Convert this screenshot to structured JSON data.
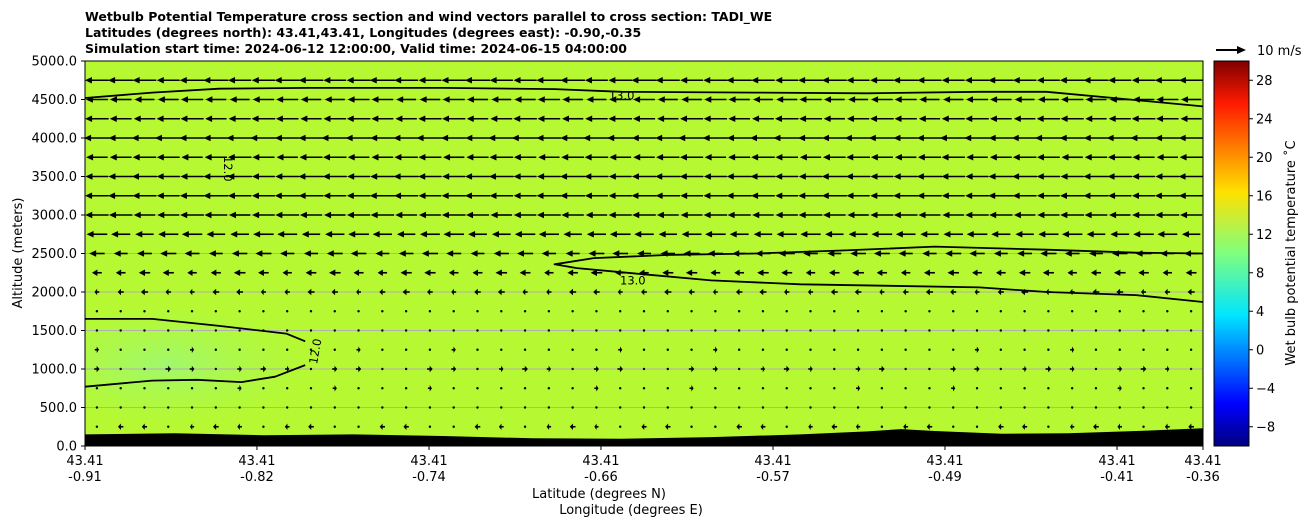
{
  "chart_data": {
    "type": "heatmap",
    "title_lines": [
      "Wetbulb Potential Temperature cross section and wind vectors parallel to cross section: TADI_WE",
      "Latitudes (degrees north): 43.41,43.41, Longitudes (degrees east): -0.90,-0.35",
      "Simulation start time: 2024-06-12 12:00:00, Valid time: 2024-06-15 04:00:00"
    ],
    "ylabel": "Altitude (meters)",
    "xlabel_lat": "Latitude (degrees N)",
    "xlabel_lon": "Longitude (degrees E)",
    "ylim": [
      0,
      5000
    ],
    "yticks": [
      0,
      500,
      1000,
      1500,
      2000,
      2500,
      3000,
      3500,
      4000,
      4500,
      5000
    ],
    "ytick_labels": [
      "0.0",
      "500.0",
      "1000.0",
      "1500.0",
      "2000.0",
      "2500.0",
      "3000.0",
      "3500.0",
      "4000.0",
      "4500.0",
      "5000.0"
    ],
    "xticks": [
      {
        "lat": "43.41",
        "lon": "-0.91"
      },
      {
        "lat": "43.41",
        "lon": "-0.82"
      },
      {
        "lat": "43.41",
        "lon": "-0.74"
      },
      {
        "lat": "43.41",
        "lon": "-0.66"
      },
      {
        "lat": "43.41",
        "lon": "-0.57"
      },
      {
        "lat": "43.41",
        "lon": "-0.49"
      },
      {
        "lat": "43.41",
        "lon": "-0.41"
      },
      {
        "lat": "43.41",
        "lon": "-0.36"
      }
    ],
    "xtick_fractions": [
      0,
      0.1538,
      0.3077,
      0.4615,
      0.6154,
      0.7692,
      0.9231,
      1.0
    ],
    "colorbar": {
      "label": "Wet bulb potential temperature ˚C",
      "range": [
        -10,
        30
      ],
      "ticks": [
        -8,
        -4,
        0,
        4,
        8,
        12,
        16,
        20,
        24,
        28
      ],
      "tick_labels": [
        "−8",
        "−4",
        "0",
        "4",
        "8",
        "12",
        "16",
        "20",
        "24",
        "28"
      ]
    },
    "wind_key": {
      "label": "10 m/s",
      "speed": 10
    },
    "contour_labels": [
      {
        "text": "13.0",
        "xf": 0.48,
        "alt": 4550
      },
      {
        "text": "13.0",
        "xf": 0.49,
        "alt": 2150
      },
      {
        "text": "12.0",
        "xf": 0.128,
        "alt": 3600
      },
      {
        "text": "12.0",
        "xf": 0.206,
        "alt": 1230
      }
    ],
    "contours": [
      {
        "level": 13.0,
        "points": [
          [
            0,
            4520
          ],
          [
            0.06,
            4590
          ],
          [
            0.12,
            4640
          ],
          [
            0.2,
            4650
          ],
          [
            0.32,
            4650
          ],
          [
            0.42,
            4635
          ],
          [
            0.48,
            4600
          ],
          [
            0.6,
            4590
          ],
          [
            0.7,
            4580
          ],
          [
            0.8,
            4600
          ],
          [
            0.86,
            4600
          ],
          [
            0.92,
            4520
          ],
          [
            1.0,
            4410
          ]
        ]
      },
      {
        "level": 13.0,
        "points": [
          [
            1.0,
            2500
          ],
          [
            0.94,
            2510
          ],
          [
            0.86,
            2550
          ],
          [
            0.76,
            2590
          ],
          [
            0.68,
            2540
          ],
          [
            0.6,
            2500
          ],
          [
            0.52,
            2480
          ],
          [
            0.455,
            2440
          ],
          [
            0.42,
            2360
          ],
          [
            0.44,
            2310
          ],
          [
            0.5,
            2230
          ],
          [
            0.56,
            2150
          ],
          [
            0.64,
            2100
          ],
          [
            0.72,
            2080
          ],
          [
            0.8,
            2060
          ],
          [
            0.86,
            2000
          ],
          [
            0.94,
            1960
          ],
          [
            1.0,
            1870
          ]
        ]
      },
      {
        "level": 12.0,
        "points": [
          [
            0,
            1650
          ],
          [
            0.06,
            1650
          ],
          [
            0.12,
            1560
          ],
          [
            0.18,
            1460
          ],
          [
            0.197,
            1360
          ]
        ]
      },
      {
        "level": 12.0,
        "points": [
          [
            0.197,
            1050
          ],
          [
            0.17,
            900
          ],
          [
            0.14,
            830
          ],
          [
            0.1,
            860
          ],
          [
            0.06,
            850
          ],
          [
            0,
            770
          ]
        ]
      }
    ],
    "terrain_alt": [
      [
        0,
        150
      ],
      [
        0.08,
        165
      ],
      [
        0.16,
        140
      ],
      [
        0.24,
        150
      ],
      [
        0.32,
        130
      ],
      [
        0.4,
        100
      ],
      [
        0.48,
        95
      ],
      [
        0.56,
        115
      ],
      [
        0.64,
        150
      ],
      [
        0.7,
        190
      ],
      [
        0.73,
        220
      ],
      [
        0.76,
        195
      ],
      [
        0.82,
        160
      ],
      [
        0.88,
        165
      ],
      [
        0.95,
        200
      ],
      [
        1.0,
        230
      ]
    ],
    "wind_levels": [
      {
        "alt": 4750,
        "u": -8.0
      },
      {
        "alt": 4500,
        "u": -7.0
      },
      {
        "alt": 4250,
        "u": -7.5
      },
      {
        "alt": 4000,
        "u": -8.5
      },
      {
        "alt": 3750,
        "u": -7.5
      },
      {
        "alt": 3500,
        "u": -8.0
      },
      {
        "alt": 3250,
        "u": -8.0
      },
      {
        "alt": 3000,
        "u": -7.5
      },
      {
        "alt": 2750,
        "u": -6.5
      },
      {
        "alt": 2500,
        "u": -5.0
      },
      {
        "alt": 2250,
        "u": -3.5
      },
      {
        "alt": 2000,
        "u": -2.0
      },
      {
        "alt": 1750,
        "u": -0.5
      },
      {
        "alt": 1500,
        "u": 0.3
      },
      {
        "alt": 1250,
        "u": 1.0
      },
      {
        "alt": 1000,
        "u": 1.5
      },
      {
        "alt": 750,
        "u": 1.0
      },
      {
        "alt": 500,
        "u": 0.5
      },
      {
        "alt": 250,
        "u": -1.5
      }
    ],
    "wind_columns": 47,
    "field_base_value": 13.4
  }
}
